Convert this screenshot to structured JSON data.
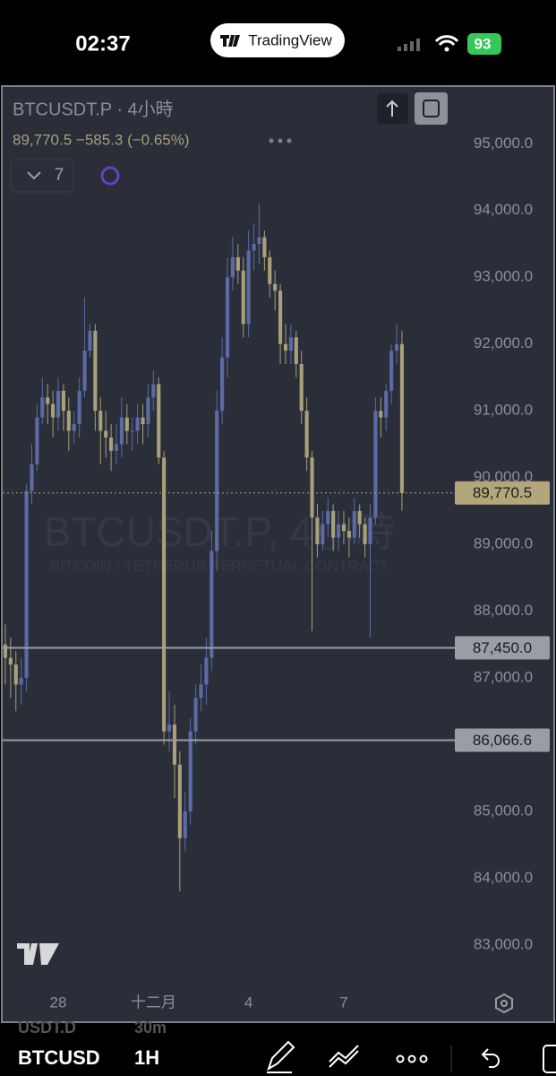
{
  "status_bar": {
    "time": "02:37",
    "app": "TradingView",
    "battery": "93"
  },
  "chart_data": {
    "type": "candlestick",
    "symbol_title": "BTCUSDT.P · 4小時",
    "last_change": "89,770.5 −585.3 (−0.65%)",
    "indicator_count": "7",
    "watermark_title": "BTCUSDT.P, 4小時",
    "watermark_subtitle": "BITCOIN / TETHERUS PERPETUAL CONTRACT",
    "up_color": "#5c6aa6",
    "down_color": "#a99f79",
    "open": [
      87500,
      87300,
      87200,
      86900,
      87000,
      89800,
      90200,
      90900,
      91200,
      91100,
      90900,
      91300,
      91000,
      90700,
      90800,
      91300,
      91900,
      92200,
      91000,
      90700,
      90600,
      90400,
      90500,
      90900,
      90700,
      90700,
      90900,
      90800,
      91200,
      91400,
      90300,
      86200,
      86300,
      85700,
      84600,
      85000,
      86200,
      86700,
      86900,
      87300,
      88900,
      91000,
      91800,
      93000,
      93300,
      93100,
      92300,
      93400,
      93500,
      93600,
      93300,
      92900,
      92800,
      92000,
      91900,
      92100,
      91700,
      91000,
      90300,
      89400,
      89000,
      89300,
      89500,
      89100,
      89300,
      89200,
      89100,
      89500,
      89300,
      89000,
      89400,
      91000,
      90900,
      91300,
      91900,
      92000
    ],
    "high": [
      87800,
      87600,
      87400,
      87300,
      89900,
      90500,
      91100,
      91500,
      91400,
      91300,
      91500,
      91400,
      91200,
      91000,
      91500,
      92700,
      92300,
      92300,
      91200,
      91000,
      90800,
      90800,
      91200,
      91100,
      90900,
      91100,
      91100,
      91400,
      91600,
      91500,
      90400,
      86800,
      86600,
      85900,
      85300,
      86400,
      86900,
      87200,
      87600,
      89200,
      91300,
      92100,
      93300,
      93600,
      93500,
      93300,
      93700,
      93800,
      94100,
      93700,
      93400,
      93100,
      92900,
      92300,
      92300,
      92200,
      91900,
      91200,
      90400,
      89600,
      89500,
      89700,
      89600,
      89500,
      89500,
      89400,
      89700,
      89600,
      89400,
      89600,
      91200,
      91200,
      91400,
      92000,
      92300,
      92200
    ],
    "low": [
      86900,
      86700,
      86500,
      86600,
      86800,
      89600,
      90100,
      90800,
      90800,
      90600,
      90700,
      90700,
      90400,
      90500,
      90600,
      91200,
      91800,
      90700,
      90200,
      90300,
      90100,
      90200,
      90300,
      90500,
      90400,
      90500,
      90500,
      90600,
      91000,
      90200,
      86000,
      85900,
      85200,
      83800,
      84400,
      84800,
      86000,
      86500,
      86600,
      87100,
      88600,
      90800,
      91500,
      92800,
      92900,
      92100,
      92100,
      93100,
      93200,
      93100,
      92700,
      92500,
      91700,
      91700,
      91700,
      91500,
      90800,
      90100,
      87700,
      88800,
      88900,
      89100,
      88900,
      88900,
      89000,
      88800,
      89000,
      89100,
      88800,
      87600,
      89300,
      90600,
      90700,
      91100,
      91700,
      89500
    ],
    "close": [
      87300,
      87200,
      86900,
      87000,
      89800,
      90200,
      90900,
      91200,
      91100,
      90900,
      91300,
      91000,
      90700,
      90800,
      91300,
      91900,
      92200,
      91000,
      90700,
      90600,
      90400,
      90500,
      90900,
      90700,
      90700,
      90900,
      90800,
      91200,
      91400,
      90300,
      86200,
      86300,
      85700,
      84600,
      85000,
      86200,
      86700,
      86900,
      87300,
      88900,
      91000,
      91800,
      93000,
      93300,
      93100,
      92300,
      93400,
      93500,
      93600,
      93300,
      92900,
      92800,
      92000,
      91900,
      92100,
      91700,
      91000,
      90300,
      89400,
      89000,
      89300,
      89500,
      89100,
      89300,
      89200,
      89100,
      89500,
      89300,
      89000,
      89400,
      91000,
      90900,
      91300,
      91900,
      92000,
      89770.5
    ],
    "xlim": [
      -0.5,
      85
    ],
    "xticks": [
      {
        "value": 10,
        "label": "28"
      },
      {
        "value": 28,
        "label": "十二月"
      },
      {
        "value": 46,
        "label": "4"
      },
      {
        "value": 64,
        "label": "7"
      }
    ],
    "ylim": [
      82380,
      95850
    ],
    "yticks": [
      {
        "value": 83000,
        "label": "83,000.0"
      },
      {
        "value": 84000,
        "label": "84,000.0"
      },
      {
        "value": 85000,
        "label": "85,000.0"
      },
      {
        "value": 86000,
        "label": "86,000.0"
      },
      {
        "value": 87000,
        "label": "87,000.0"
      },
      {
        "value": 88000,
        "label": "88,000.0"
      },
      {
        "value": 89000,
        "label": "89,000.0"
      },
      {
        "value": 90000,
        "label": "90,000.0"
      },
      {
        "value": 91000,
        "label": "91,000.0"
      },
      {
        "value": 92000,
        "label": "92,000.0"
      },
      {
        "value": 93000,
        "label": "93,000.0"
      },
      {
        "value": 94000,
        "label": "94,000.0"
      },
      {
        "value": 95000,
        "label": "95,000.0"
      }
    ],
    "price_lines": [
      {
        "value": 89770.5,
        "label": "89,770.5",
        "style": "dotted",
        "color": "#b3a67a"
      },
      {
        "value": 87450,
        "label": "87,450.0",
        "style": "solid",
        "color": "#9a9da4"
      },
      {
        "value": 86066.6,
        "label": "86,066.6",
        "style": "solid",
        "color": "#9a9da4"
      }
    ]
  },
  "bottom_bar": {
    "back_symbol": "USDT.D",
    "back_interval": "30m",
    "symbol": "BTCUSD",
    "interval": "1H"
  }
}
